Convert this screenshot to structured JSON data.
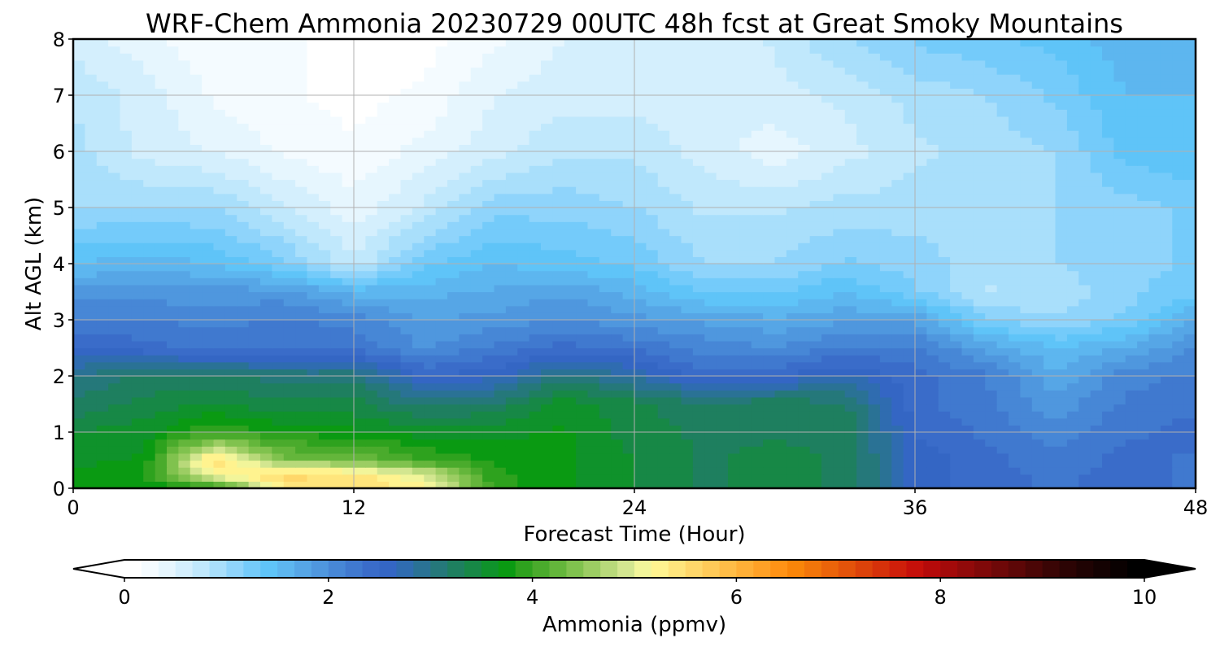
{
  "chart_data": {
    "type": "heatmap",
    "title": "WRF-Chem Ammonia  20230729 00UTC 48h fcst at Great Smoky Mountains",
    "xlabel": "Forecast Time (Hour)",
    "ylabel": "Alt AGL (km)",
    "xlim": [
      0,
      48
    ],
    "ylim": [
      0,
      8
    ],
    "x_ticks": [
      "0",
      "12",
      "24",
      "36",
      "48"
    ],
    "x_tick_values": [
      0,
      12,
      24,
      36,
      48
    ],
    "y_ticks": [
      "0",
      "1",
      "2",
      "3",
      "4",
      "5",
      "6",
      "7",
      "8"
    ],
    "y_tick_values": [
      0,
      1,
      2,
      3,
      4,
      5,
      6,
      7,
      8
    ],
    "grid": true,
    "x": [
      0,
      3,
      6,
      9,
      12,
      15,
      18,
      21,
      24,
      27,
      30,
      33,
      36,
      39,
      42,
      45,
      48
    ],
    "y": [
      0,
      0.25,
      0.5,
      1,
      1.5,
      2,
      2.5,
      3,
      3.5,
      4,
      5,
      6,
      7,
      8
    ],
    "values": [
      [
        3.7,
        3.7,
        3.8,
        5.3,
        5.5,
        5.3,
        3.9,
        3.7,
        3.5,
        3.3,
        3.4,
        3.3,
        2.6,
        2.4,
        2.3,
        2.4,
        2.3
      ],
      [
        3.7,
        3.8,
        5.2,
        5.6,
        5.4,
        5.0,
        3.9,
        3.7,
        3.5,
        3.3,
        3.4,
        3.3,
        2.6,
        2.4,
        2.3,
        2.4,
        2.3
      ],
      [
        3.6,
        3.7,
        5.5,
        4.4,
        4.4,
        4.0,
        3.8,
        3.7,
        3.5,
        3.3,
        3.4,
        3.3,
        2.6,
        2.4,
        2.2,
        2.4,
        2.3
      ],
      [
        3.5,
        3.6,
        4.0,
        3.8,
        3.7,
        3.6,
        3.6,
        3.7,
        3.4,
        3.3,
        3.3,
        3.3,
        2.5,
        2.3,
        2.1,
        2.3,
        2.4
      ],
      [
        3.2,
        3.4,
        3.5,
        3.4,
        3.4,
        3.1,
        3.2,
        3.6,
        3.4,
        3.2,
        3.3,
        3.2,
        2.4,
        2.2,
        1.9,
        2.2,
        2.3
      ],
      [
        3.0,
        3.2,
        3.2,
        3.1,
        3.1,
        2.5,
        2.6,
        3.1,
        2.8,
        2.4,
        2.5,
        2.7,
        2.4,
        2.2,
        1.7,
        2.1,
        2.2
      ],
      [
        2.5,
        2.4,
        2.3,
        2.3,
        2.3,
        2.0,
        2.2,
        2.4,
        2.3,
        2.1,
        2.0,
        2.2,
        2.2,
        1.8,
        1.5,
        1.7,
        2.0
      ],
      [
        2.2,
        2.2,
        2.1,
        2.2,
        2.1,
        1.8,
        1.9,
        2.0,
        1.9,
        1.8,
        1.7,
        1.8,
        1.8,
        1.2,
        1.0,
        1.2,
        1.7
      ],
      [
        1.9,
        1.9,
        1.9,
        1.9,
        1.6,
        1.6,
        1.7,
        1.8,
        1.6,
        1.3,
        1.3,
        1.5,
        1.2,
        0.8,
        0.9,
        1.1,
        1.3
      ],
      [
        1.5,
        1.6,
        1.5,
        1.2,
        0.7,
        1.3,
        1.5,
        1.4,
        1.3,
        1.0,
        1.0,
        1.2,
        1.1,
        0.9,
        1.0,
        1.1,
        1.2
      ],
      [
        1.0,
        1.0,
        1.0,
        0.7,
        0.4,
        0.7,
        1.1,
        1.1,
        1.0,
        0.8,
        0.8,
        0.9,
        0.9,
        0.9,
        1.0,
        1.1,
        1.2
      ],
      [
        0.9,
        0.6,
        0.5,
        0.3,
        0.2,
        0.4,
        0.6,
        0.8,
        0.8,
        0.6,
        0.4,
        0.6,
        0.8,
        0.9,
        1.0,
        1.4,
        1.5
      ],
      [
        0.8,
        0.6,
        0.3,
        0.2,
        0.1,
        0.2,
        0.5,
        0.6,
        0.6,
        0.5,
        0.6,
        0.7,
        0.9,
        1.0,
        1.2,
        1.5,
        1.5
      ],
      [
        0.6,
        0.4,
        0.2,
        0.2,
        0.1,
        0.1,
        0.3,
        0.5,
        0.5,
        0.5,
        0.7,
        1.0,
        1.2,
        1.3,
        1.4,
        1.6,
        1.6
      ]
    ]
  },
  "colorbar": {
    "label": "Ammonia  (ppmv)",
    "min": 0,
    "max": 10,
    "ticks": [
      "0",
      "2",
      "4",
      "6",
      "8",
      "10"
    ],
    "tick_values": [
      0,
      2,
      4,
      6,
      8,
      10
    ],
    "extend": "both",
    "colors": [
      "#ffffff",
      "#f4fbff",
      "#e6f6fe",
      "#d4effd",
      "#c0e8fc",
      "#a9dffb",
      "#8fd4fb",
      "#74cbfa",
      "#5fc4f8",
      "#5db6ef",
      "#56a6e6",
      "#4f97de",
      "#4787d6",
      "#4079cf",
      "#3a6cc9",
      "#3466c4",
      "#2f6cb0",
      "#2a7295",
      "#25787a",
      "#1e7f5f",
      "#178846",
      "#0f922b",
      "#0a9a12",
      "#2ea21e",
      "#4aab2c",
      "#64b63b",
      "#80c24e",
      "#9ccd63",
      "#b8d97a",
      "#d3e690",
      "#f2f59a",
      "#fff38f",
      "#ffe57c",
      "#ffd76a",
      "#ffca58",
      "#ffbd47",
      "#ffaf36",
      "#ffa126",
      "#ff9316",
      "#f98509",
      "#f2750a",
      "#eb640a",
      "#e4530a",
      "#dc420a",
      "#d5310a",
      "#cf1f0a",
      "#c6100a",
      "#b50a0a",
      "#a30a0a",
      "#910a0a",
      "#800909",
      "#6e0808",
      "#5d0707",
      "#4b0606",
      "#3a0505",
      "#2c0404",
      "#1f0303",
      "#140202",
      "#0a0101",
      "#000000"
    ]
  }
}
